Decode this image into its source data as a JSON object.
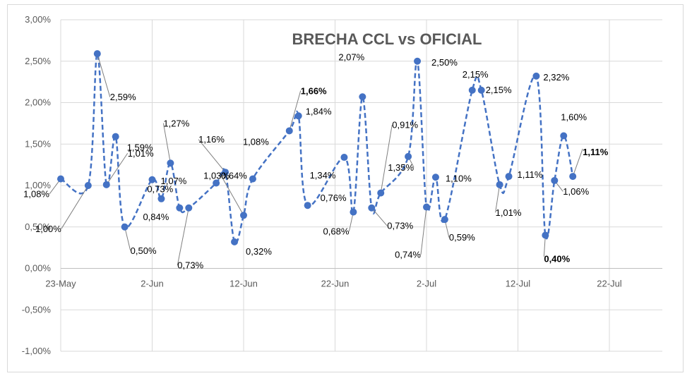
{
  "chart_data": {
    "type": "line",
    "title": "BRECHA CCL vs OFICIAL",
    "xlabel": "",
    "ylabel": "",
    "ylim": [
      -1.0,
      3.0
    ],
    "y_ticks": [
      "3,00%",
      "2,50%",
      "2,00%",
      "1,50%",
      "1,00%",
      "0,50%",
      "0,00%",
      "-0,50%",
      "-1,00%"
    ],
    "y_tick_values": [
      3.0,
      2.5,
      2.0,
      1.5,
      1.0,
      0.5,
      0.0,
      -0.5,
      -1.0
    ],
    "x_ticks": [
      "23-May",
      "2-Jun",
      "12-Jun",
      "22-Jun",
      "2-Jul",
      "12-Jul",
      "22-Jul"
    ],
    "x_tick_days": [
      0,
      10,
      20,
      30,
      40,
      50,
      60
    ],
    "grid": true,
    "line_color": "#4472c4",
    "series": [
      {
        "name": "Brecha",
        "points": [
          {
            "day": 0,
            "value": 1.08,
            "label": "1,08%"
          },
          {
            "day": 3,
            "value": 1.0,
            "label": "1,00%"
          },
          {
            "day": 4,
            "value": 2.59,
            "label": "2,59%"
          },
          {
            "day": 5,
            "value": 1.01,
            "label": "1,01%"
          },
          {
            "day": 6,
            "value": 1.59,
            "label": "1,59%"
          },
          {
            "day": 7,
            "value": 0.5,
            "label": "0,50%"
          },
          {
            "day": 10,
            "value": 1.07,
            "label": "1,07%"
          },
          {
            "day": 11,
            "value": 0.84,
            "label": "0,84%"
          },
          {
            "day": 12,
            "value": 1.27,
            "label": "1,27%"
          },
          {
            "day": 13,
            "value": 0.73,
            "label": "0,73%"
          },
          {
            "day": 14,
            "value": 0.73,
            "label": "0,73%"
          },
          {
            "day": 17,
            "value": 1.03,
            "label": "1,03%"
          },
          {
            "day": 18,
            "value": 1.16,
            "label": "1,16%"
          },
          {
            "day": 19,
            "value": 0.32,
            "label": "0,32%"
          },
          {
            "day": 20,
            "value": 0.64,
            "label": "0,64%"
          },
          {
            "day": 21,
            "value": 1.08,
            "label": "1,08%"
          },
          {
            "day": 25,
            "value": 1.66,
            "label": "1,66%"
          },
          {
            "day": 26,
            "value": 1.84,
            "label": "1,84%"
          },
          {
            "day": 27,
            "value": 0.76,
            "label": "0,76%"
          },
          {
            "day": 31,
            "value": 1.34,
            "label": "1,34%"
          },
          {
            "day": 32,
            "value": 0.68,
            "label": "0,68%"
          },
          {
            "day": 33,
            "value": 2.07,
            "label": "2,07%"
          },
          {
            "day": 34,
            "value": 0.73,
            "label": "0,73%"
          },
          {
            "day": 35,
            "value": 0.91,
            "label": "0,91%"
          },
          {
            "day": 38,
            "value": 1.35,
            "label": "1,35%"
          },
          {
            "day": 39,
            "value": 2.5,
            "label": "2,50%"
          },
          {
            "day": 40,
            "value": 0.74,
            "label": "0,74%"
          },
          {
            "day": 41,
            "value": 1.1,
            "label": "1,10%"
          },
          {
            "day": 42,
            "value": 0.59,
            "label": "0,59%"
          },
          {
            "day": 45,
            "value": 2.15,
            "label": "2,15%"
          },
          {
            "day": 46,
            "value": 2.15,
            "label": "2,15%"
          },
          {
            "day": 48,
            "value": 1.01,
            "label": "1,01%"
          },
          {
            "day": 49,
            "value": 1.11,
            "label": "1,11%"
          },
          {
            "day": 52,
            "value": 2.32,
            "label": "2,32%"
          },
          {
            "day": 53,
            "value": 0.4,
            "label": "0,40%"
          },
          {
            "day": 54,
            "value": 1.06,
            "label": "1,06%"
          },
          {
            "day": 55,
            "value": 1.6,
            "label": "1,60%"
          },
          {
            "day": 56,
            "value": 1.11,
            "label": "1,11%"
          }
        ]
      }
    ]
  }
}
